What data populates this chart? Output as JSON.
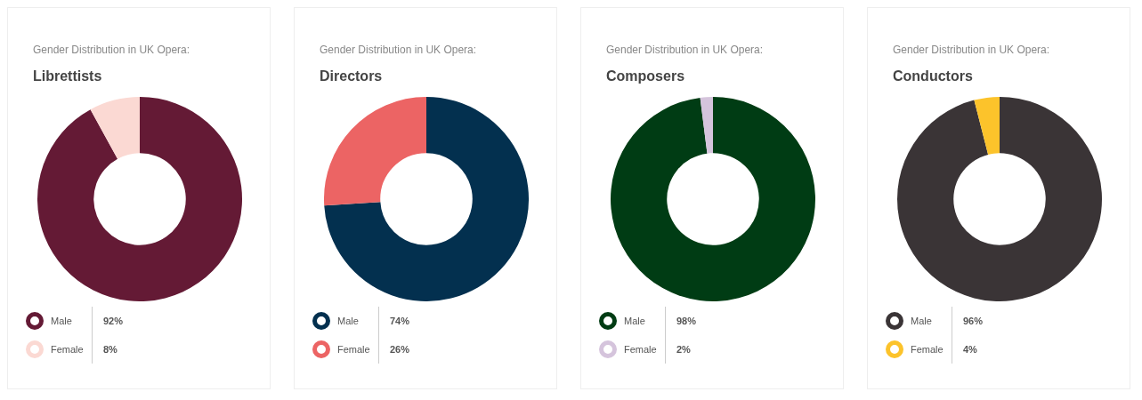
{
  "chart_data": [
    {
      "type": "donut",
      "title": "Gender Distribution in UK Opera:",
      "subtitle": "Librettists",
      "categories": [
        "Male",
        "Female"
      ],
      "values": [
        92,
        8
      ],
      "colors": [
        "#641a35",
        "#fbd9d3"
      ],
      "value_labels": [
        "92%",
        "8%"
      ],
      "legend": "bottom"
    },
    {
      "type": "donut",
      "title": "Gender Distribution in UK Opera:",
      "subtitle": "Directors",
      "categories": [
        "Male",
        "Female"
      ],
      "values": [
        74,
        26
      ],
      "colors": [
        "#03304f",
        "#ec6464"
      ],
      "value_labels": [
        "74%",
        "26%"
      ],
      "legend": "bottom"
    },
    {
      "type": "donut",
      "title": "Gender Distribution in UK Opera:",
      "subtitle": "Composers",
      "categories": [
        "Male",
        "Female"
      ],
      "values": [
        98,
        2
      ],
      "colors": [
        "#003c14",
        "#d5c4dc"
      ],
      "value_labels": [
        "98%",
        "2%"
      ],
      "legend": "bottom"
    },
    {
      "type": "donut",
      "title": "Gender Distribution in UK Opera:",
      "subtitle": "Conductors",
      "categories": [
        "Male",
        "Female"
      ],
      "values": [
        96,
        4
      ],
      "colors": [
        "#3a3436",
        "#fcc32b"
      ],
      "value_labels": [
        "96%",
        "4%"
      ],
      "legend": "bottom"
    }
  ]
}
